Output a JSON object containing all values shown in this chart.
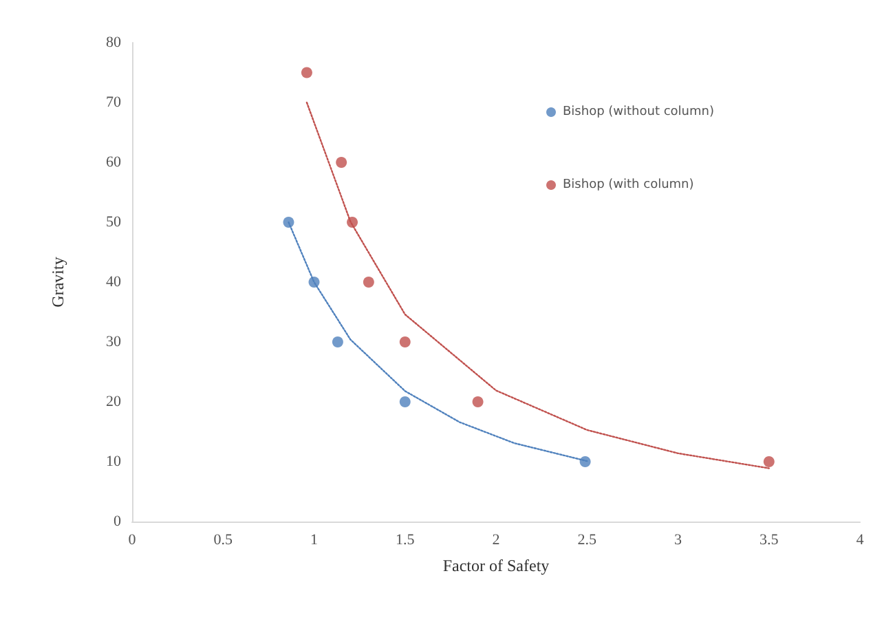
{
  "chart_data": {
    "type": "scatter",
    "xlabel": "Factor of Safety",
    "ylabel": "Gravity",
    "xlim": [
      0,
      4
    ],
    "xticks": [
      0,
      0.5,
      1,
      1.5,
      2,
      2.5,
      3,
      3.5,
      4
    ],
    "ylim": [
      0,
      80
    ],
    "yticks": [
      0,
      10,
      20,
      30,
      40,
      50,
      60,
      70,
      80
    ],
    "grid": false,
    "legend": "top right",
    "marker": "circle",
    "series": [
      {
        "name": "Bishop (without column)",
        "color": "#4f81bd",
        "x": [
          0.86,
          1.0,
          1.13,
          1.5,
          2.49
        ],
        "values": [
          50,
          40,
          30,
          20,
          10
        ]
      },
      {
        "name": "Bishop (with column)",
        "color": "#c0504d",
        "x": [
          0.96,
          1.15,
          1.21,
          1.3,
          1.5,
          1.9,
          3.5
        ],
        "values": [
          75,
          60,
          50,
          40,
          30,
          20,
          10
        ]
      },
      {
        "type": "line",
        "color": "#4f81bd",
        "line_style": "dotted",
        "marker": "none",
        "x": [
          0.86,
          1.0,
          1.2,
          1.5,
          1.8,
          2.1,
          2.5
        ],
        "values": [
          50,
          40,
          30.4,
          21.8,
          16.6,
          13.1,
          10.1
        ]
      },
      {
        "type": "line",
        "color": "#c0504d",
        "line_style": "dotted",
        "marker": "none",
        "x": [
          0.96,
          1.2,
          1.5,
          2.0,
          2.5,
          3.0,
          3.5
        ],
        "values": [
          70,
          50.1,
          34.6,
          21.9,
          15.3,
          11.4,
          8.9
        ]
      }
    ]
  }
}
